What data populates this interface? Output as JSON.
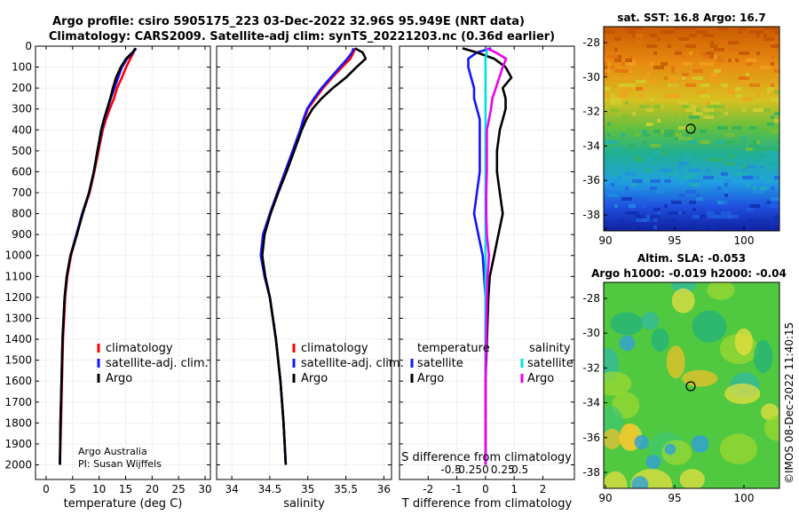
{
  "title": {
    "line1": "Argo profile: csiro 5905175_223 03-Dec-2022 32.96S 95.949E (NRT data)",
    "line2": "Climatology: CARS2009. Satellite-adj clim: synTS_20221203.nc (0.36d earlier)"
  },
  "colors": {
    "climatology": "#ff0000",
    "satellite": "#1414ff",
    "argo": "#000000",
    "sat_salt": "#00e0e0",
    "argo_salt": "#ee00ee"
  },
  "depth_axis": {
    "ticks": [
      0,
      100,
      200,
      300,
      400,
      500,
      600,
      700,
      800,
      900,
      1000,
      1100,
      1200,
      1300,
      1400,
      1500,
      1600,
      1700,
      1800,
      1900,
      2000
    ]
  },
  "chart_data": [
    {
      "type": "line",
      "id": "temperature",
      "xlabel": "temperature (deg C)",
      "ylabel": "",
      "xlim": [
        -2,
        31
      ],
      "ylim": [
        2070,
        0
      ],
      "xticks": [
        0,
        5,
        10,
        15,
        20,
        25,
        30
      ],
      "legend": [
        "climatology",
        "satellite-adj. clim.",
        "Argo"
      ],
      "credit": [
        "Argo Australia",
        "PI: Susan Wijffels"
      ],
      "depth": [
        10,
        30,
        60,
        100,
        150,
        200,
        250,
        300,
        350,
        400,
        500,
        600,
        700,
        800,
        900,
        1000,
        1100,
        1200,
        1400,
        1600,
        1800,
        2000
      ],
      "series": [
        {
          "name": "climatology",
          "values": [
            16.8,
            16.5,
            15.9,
            15.1,
            14.3,
            13.4,
            12.8,
            12.0,
            11.3,
            10.7,
            9.9,
            9.1,
            8.2,
            6.9,
            5.8,
            4.7,
            4.0,
            3.6,
            3.2,
            3.0,
            2.8,
            2.6
          ]
        },
        {
          "name": "satellite-adj. clim.",
          "values": [
            17.0,
            16.4,
            15.3,
            14.3,
            13.6,
            12.9,
            12.2,
            11.6,
            11.0,
            10.5,
            9.7,
            9.0,
            8.1,
            6.8,
            5.7,
            4.6,
            3.9,
            3.5,
            3.1,
            2.9,
            2.7,
            2.6
          ]
        },
        {
          "name": "Argo",
          "values": [
            16.9,
            16.3,
            15.1,
            14.1,
            13.2,
            12.6,
            12.1,
            11.5,
            10.9,
            10.4,
            9.7,
            9.0,
            8.1,
            6.9,
            5.8,
            4.6,
            3.9,
            3.5,
            3.1,
            2.9,
            2.7,
            2.6
          ]
        }
      ]
    },
    {
      "type": "line",
      "id": "salinity",
      "xlabel": "salinity",
      "ylabel": "",
      "xlim": [
        33.8,
        36.1
      ],
      "ylim": [
        2070,
        0
      ],
      "xticks": [
        34,
        34.5,
        35,
        35.5,
        36
      ],
      "legend": [
        "climatology",
        "satellite-adj. clim.",
        "Argo"
      ],
      "depth": [
        10,
        30,
        60,
        100,
        150,
        200,
        250,
        300,
        350,
        400,
        500,
        600,
        700,
        800,
        900,
        1000,
        1100,
        1200,
        1400,
        1600,
        1800,
        2000
      ],
      "series": [
        {
          "name": "climatology",
          "values": [
            35.62,
            35.6,
            35.56,
            35.45,
            35.32,
            35.2,
            35.1,
            35.0,
            34.95,
            34.9,
            34.8,
            34.7,
            34.6,
            34.5,
            34.42,
            34.39,
            34.43,
            34.5,
            34.58,
            34.64,
            34.68,
            34.71
          ]
        },
        {
          "name": "satellite-adj. clim.",
          "values": [
            35.6,
            35.58,
            35.52,
            35.42,
            35.3,
            35.18,
            35.08,
            34.99,
            34.94,
            34.9,
            34.8,
            34.7,
            34.6,
            34.5,
            34.41,
            34.38,
            34.43,
            34.5,
            34.58,
            34.64,
            34.68,
            34.71
          ]
        },
        {
          "name": "Argo",
          "values": [
            35.62,
            35.72,
            35.76,
            35.64,
            35.5,
            35.33,
            35.18,
            35.06,
            34.98,
            34.92,
            34.82,
            34.72,
            34.61,
            34.51,
            34.43,
            34.4,
            34.44,
            34.5,
            34.58,
            34.64,
            34.68,
            34.71
          ]
        }
      ]
    },
    {
      "type": "line",
      "id": "difference",
      "xlabel": "T difference from climatology",
      "x2label": "S difference from climatology",
      "xlim": [
        -3,
        3.1
      ],
      "ylim": [
        2070,
        0
      ],
      "xticks": [
        -2,
        -1,
        0,
        1,
        2
      ],
      "xtick_labels": [
        "-2",
        "-1",
        "0",
        "1",
        "2"
      ],
      "sticks": [
        -0.5,
        -0.25,
        0,
        0.25,
        0.5
      ],
      "stick_labels": [
        "-0.5",
        "-0.25",
        "0",
        "0.25",
        "0.5"
      ],
      "legend_titles": [
        "temperature",
        "salinity"
      ],
      "legend": [
        "satellite",
        "Argo",
        "satellite",
        "Argo"
      ],
      "depth": [
        10,
        30,
        60,
        100,
        150,
        200,
        250,
        300,
        350,
        400,
        500,
        600,
        700,
        800,
        900,
        1000,
        1100,
        1200,
        1400,
        1600,
        1800,
        2000
      ],
      "series": [
        {
          "name": "temperature satellite",
          "values": [
            0.2,
            -0.3,
            -0.6,
            -0.6,
            -0.5,
            -0.4,
            -0.4,
            -0.3,
            -0.2,
            -0.2,
            -0.2,
            -0.2,
            -0.3,
            -0.4,
            -0.25,
            -0.1,
            -0.05,
            0,
            0,
            0,
            0,
            0
          ]
        },
        {
          "name": "temperature Argo",
          "values": [
            -0.8,
            -0.3,
            0.3,
            0.7,
            0.9,
            0.6,
            0.7,
            0.7,
            0.6,
            0.5,
            0.4,
            0.4,
            0.5,
            0.6,
            0.45,
            0.3,
            0.15,
            0.1,
            0.05,
            0,
            0,
            0
          ]
        },
        {
          "name": "salinity satellite",
          "values": [
            0.02,
            0.02,
            0,
            0,
            0,
            0,
            0,
            0,
            0,
            0,
            0,
            0,
            0,
            0,
            0,
            0,
            0,
            0,
            0,
            0,
            0,
            0
          ]
        },
        {
          "name": "salinity Argo",
          "values": [
            0.02,
            0.15,
            0.3,
            0.25,
            0.2,
            0.15,
            0.1,
            0.08,
            0.05,
            0.02,
            0.02,
            0.02,
            0.01,
            0.01,
            0.02,
            0.05,
            0.03,
            0.02,
            0.01,
            0,
            0,
            0
          ]
        }
      ]
    }
  ],
  "maps": {
    "sst": {
      "title": "sat. SST: 16.8 Argo: 16.7",
      "yticks": [
        "-28",
        "-30",
        "-32",
        "-34",
        "-36",
        "-38"
      ],
      "xticks": [
        "90",
        "95",
        "100"
      ]
    },
    "sla": {
      "title1": "Altim. SLA: -0.053",
      "title2": "Argo h1000: -0.019 h2000: -0.04",
      "yticks": [
        "-28",
        "-30",
        "-32",
        "-34",
        "-36",
        "-38"
      ],
      "xticks": [
        "90",
        "95",
        "100"
      ]
    }
  },
  "footer": {
    "stamp": "©IMOS 08-Dec-2022 11:40:15"
  }
}
